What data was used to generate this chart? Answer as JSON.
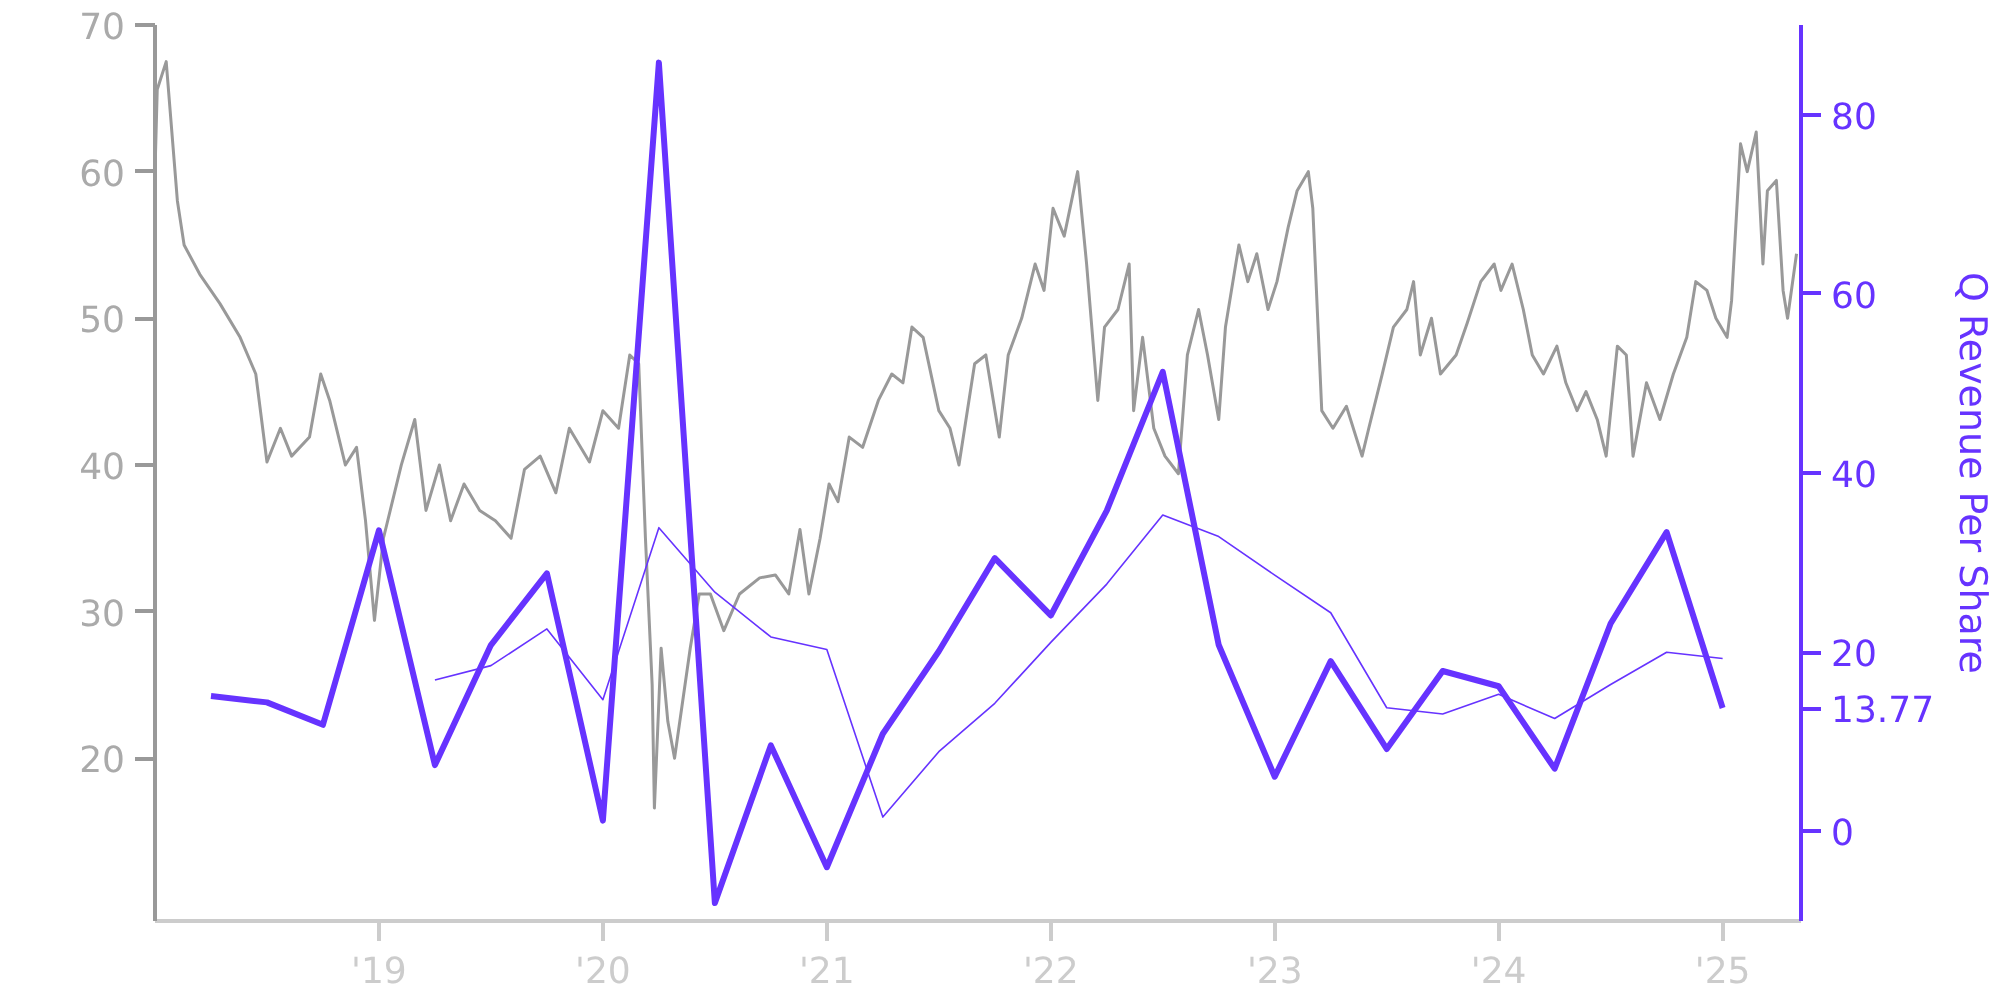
{
  "chart_data": {
    "type": "line",
    "y2label": "Q Revenue Per Share",
    "xlim": [
      2018.0,
      2025.35
    ],
    "xticks": [
      {
        "value": 2019,
        "label": "'19"
      },
      {
        "value": 2020,
        "label": "'20"
      },
      {
        "value": 2021,
        "label": "'21"
      },
      {
        "value": 2022,
        "label": "'22"
      },
      {
        "value": 2023,
        "label": "'23"
      },
      {
        "value": 2024,
        "label": "'24"
      },
      {
        "value": 2025,
        "label": "'25"
      }
    ],
    "ylim": [
      8.9,
      70
    ],
    "yticks": [
      20,
      30,
      40,
      50,
      60,
      70
    ],
    "y2lim": [
      -10,
      90
    ],
    "y2ticks": [
      0,
      20,
      40,
      60,
      80
    ],
    "grid": false,
    "annotations": [
      "13.77"
    ],
    "series": [
      {
        "color": "#999999",
        "x": [
          2018.0,
          2018.01,
          2018.05,
          2018.1,
          2018.13,
          2018.2,
          2018.29,
          2018.38,
          2018.45,
          2018.5,
          2018.56,
          2018.61,
          2018.69,
          2018.74,
          2018.78,
          2018.85,
          2018.9,
          2018.94,
          2018.98,
          2019.02,
          2019.1,
          2019.16,
          2019.21,
          2019.27,
          2019.32,
          2019.38,
          2019.45,
          2019.52,
          2019.59,
          2019.65,
          2019.72,
          2019.79,
          2019.85,
          2019.94,
          2020.0,
          2020.07,
          2020.12,
          2020.16,
          2020.19,
          2020.22,
          2020.23,
          2020.26,
          2020.29,
          2020.32,
          2020.39,
          2020.43,
          2020.48,
          2020.54,
          2020.61,
          2020.7,
          2020.77,
          2020.83,
          2020.88,
          2020.92,
          2020.97,
          2021.01,
          2021.05,
          2021.1,
          2021.16,
          2021.23,
          2021.29,
          2021.34,
          2021.38,
          2021.43,
          2021.5,
          2021.55,
          2021.59,
          2021.66,
          2021.71,
          2021.77,
          2021.81,
          2021.87,
          2021.93,
          2021.97,
          2022.01,
          2022.06,
          2022.12,
          2022.16,
          2022.21,
          2022.24,
          2022.3,
          2022.35,
          2022.37,
          2022.41,
          2022.46,
          2022.51,
          2022.57,
          2022.61,
          2022.66,
          2022.7,
          2022.75,
          2022.78,
          2022.84,
          2022.88,
          2022.92,
          2022.97,
          2023.01,
          2023.06,
          2023.1,
          2023.15,
          2023.17,
          2023.21,
          2023.26,
          2023.32,
          2023.39,
          2023.42,
          2023.48,
          2023.53,
          2023.59,
          2023.62,
          2023.65,
          2023.7,
          2023.74,
          2023.81,
          2023.86,
          2023.92,
          2023.98,
          2024.01,
          2024.06,
          2024.11,
          2024.15,
          2024.2,
          2024.26,
          2024.3,
          2024.35,
          2024.39,
          2024.44,
          2024.48,
          2024.53,
          2024.57,
          2024.6,
          2024.66,
          2024.72,
          2024.78,
          2024.84,
          2024.88,
          2024.93,
          2024.97,
          2025.02,
          2025.04,
          2025.08,
          2025.11,
          2025.15,
          2025.18,
          2025.2,
          2025.24,
          2025.27,
          2025.29,
          2025.33
        ],
        "values": [
          60,
          65.6,
          67.5,
          58,
          55,
          53,
          51,
          48.7,
          46.2,
          40.2,
          42.5,
          40.6,
          41.9,
          46.2,
          44.4,
          40,
          41.2,
          36.2,
          29.4,
          35,
          40,
          43.1,
          36.9,
          40,
          36.2,
          38.7,
          36.9,
          36.2,
          35,
          39.7,
          40.6,
          38.1,
          42.5,
          40.2,
          43.7,
          42.5,
          47.5,
          46.9,
          35,
          25,
          16.6,
          27.5,
          22.5,
          20,
          27.5,
          31.2,
          31.2,
          28.7,
          31.2,
          32.3,
          32.5,
          31.2,
          35.6,
          31.2,
          35,
          38.7,
          37.5,
          41.9,
          41.2,
          44.4,
          46.2,
          45.6,
          49.4,
          48.7,
          43.7,
          42.5,
          40,
          46.9,
          47.5,
          41.9,
          47.5,
          50,
          53.7,
          51.9,
          57.5,
          55.6,
          60,
          53.7,
          44.4,
          49.4,
          50.6,
          53.7,
          43.7,
          48.7,
          42.5,
          40.6,
          39.4,
          47.5,
          50.6,
          47.5,
          43.1,
          49.4,
          55,
          52.5,
          54.4,
          50.6,
          52.5,
          56.2,
          58.7,
          60,
          57.5,
          43.7,
          42.5,
          44,
          40.6,
          42.5,
          46.2,
          49.4,
          50.6,
          52.5,
          47.5,
          50,
          46.2,
          47.5,
          49.7,
          52.5,
          53.7,
          51.9,
          53.7,
          50.6,
          47.5,
          46.2,
          48.1,
          45.6,
          43.7,
          45,
          43.1,
          40.6,
          48.1,
          47.5,
          40.6,
          45.6,
          43.1,
          46.2,
          48.7,
          52.5,
          51.9,
          50,
          48.7,
          51.2,
          61.9,
          60,
          62.7,
          53.7,
          58.7,
          59.4,
          51.9,
          50,
          54.4
        ]
      },
      {
        "color": "#6633ff",
        "axis": "y2",
        "x": [
          2018.25,
          2018.5,
          2018.75,
          2019.0,
          2019.25,
          2019.5,
          2019.75,
          2020.0,
          2020.25,
          2020.5,
          2020.75,
          2021.0,
          2021.25,
          2021.5,
          2021.75,
          2022.0,
          2022.25,
          2022.5,
          2022.75,
          2023.0,
          2023.25,
          2023.5,
          2023.75,
          2024.0,
          2024.25,
          2024.5,
          2024.75,
          2025.0
        ],
        "values": [
          15.1,
          14.4,
          11.9,
          33.6,
          7.4,
          20.8,
          28.8,
          1.2,
          85.8,
          -8,
          9.6,
          -4,
          10.9,
          20.1,
          30.5,
          24.1,
          35.8,
          51.3,
          20.8,
          6.1,
          19.0,
          9.2,
          17.9,
          16.2,
          7.0,
          23.2,
          33.4,
          13.77
        ]
      },
      {
        "color": "#6633ff",
        "axis": "y2",
        "x": [
          2019.25,
          2019.5,
          2019.75,
          2020.0,
          2020.25,
          2020.5,
          2020.75,
          2021.0,
          2021.25,
          2021.5,
          2021.75,
          2022.0,
          2022.25,
          2022.5,
          2022.75,
          2023.0,
          2023.25,
          2023.5,
          2023.75,
          2024.0,
          2024.25,
          2024.5,
          2024.75,
          2025.0
        ],
        "values": [
          16.9,
          18.5,
          22.6,
          14.7,
          33.9,
          26.7,
          21.7,
          20.3,
          1.6,
          8.9,
          14.3,
          21.1,
          27.6,
          35.3,
          32.9,
          28.6,
          24.4,
          13.8,
          13.1,
          15.3,
          12.6,
          16.4,
          20.0,
          19.3
        ]
      }
    ]
  }
}
